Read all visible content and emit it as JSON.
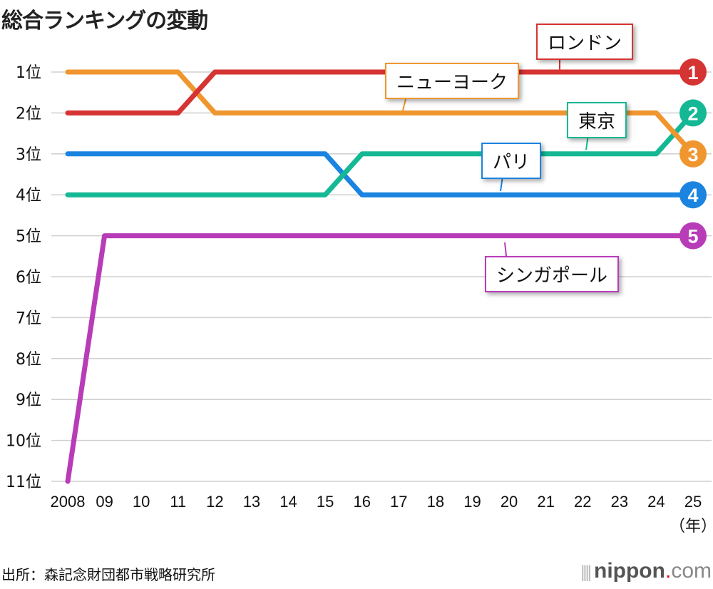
{
  "title": "総合ランキングの変動",
  "source": "出所：森記念財団都市戦略研究所",
  "logo": {
    "bars": "||||",
    "name": "nippon",
    "dot": ".",
    "tld": "com"
  },
  "chart_data": {
    "type": "line",
    "title": "総合ランキングの変動",
    "x": [
      "2008",
      "09",
      "10",
      "11",
      "12",
      "13",
      "14",
      "15",
      "16",
      "17",
      "18",
      "19",
      "20",
      "21",
      "22",
      "23",
      "24",
      "25"
    ],
    "x_unit": "（年）",
    "y_ticks": [
      "1位",
      "2位",
      "3位",
      "4位",
      "5位",
      "6位",
      "7位",
      "8位",
      "9位",
      "10位",
      "11位"
    ],
    "ylim": [
      1,
      11
    ],
    "y_inverted": true,
    "grid": true,
    "series": [
      {
        "name": "ロンドン",
        "color": "#d63333",
        "final_rank": "1",
        "values": [
          2,
          2,
          2,
          2,
          1,
          1,
          1,
          1,
          1,
          1,
          1,
          1,
          1,
          1,
          1,
          1,
          1,
          1
        ]
      },
      {
        "name": "ニューヨーク",
        "color": "#f0962f",
        "final_rank": "3",
        "values": [
          1,
          1,
          1,
          1,
          2,
          2,
          2,
          2,
          2,
          2,
          2,
          2,
          2,
          2,
          2,
          2,
          2,
          3
        ]
      },
      {
        "name": "東京",
        "color": "#14b894",
        "final_rank": "2",
        "values": [
          4,
          4,
          4,
          4,
          4,
          4,
          4,
          4,
          3,
          3,
          3,
          3,
          3,
          3,
          3,
          3,
          3,
          2
        ]
      },
      {
        "name": "パリ",
        "color": "#1a84e0",
        "final_rank": "4",
        "values": [
          3,
          3,
          3,
          3,
          3,
          3,
          3,
          3,
          4,
          4,
          4,
          4,
          4,
          4,
          4,
          4,
          4,
          4
        ]
      },
      {
        "name": "シンガポール",
        "color": "#b83cb8",
        "final_rank": "5",
        "values": [
          11,
          5,
          5,
          5,
          5,
          5,
          5,
          5,
          5,
          5,
          5,
          5,
          5,
          5,
          5,
          5,
          5,
          5
        ]
      }
    ]
  }
}
